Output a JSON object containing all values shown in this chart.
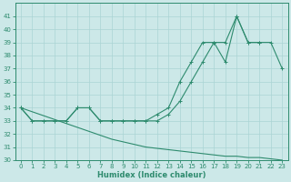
{
  "x": [
    0,
    1,
    2,
    3,
    4,
    5,
    6,
    7,
    8,
    9,
    10,
    11,
    12,
    13,
    14,
    15,
    16,
    17,
    18,
    19,
    20,
    21,
    22,
    23
  ],
  "line_zigzag": [
    34,
    33,
    33,
    33,
    33,
    34,
    34,
    33,
    33,
    33,
    33,
    33,
    33.5,
    34,
    36,
    37.5,
    39,
    39,
    37.5,
    41,
    39,
    39,
    null,
    null
  ],
  "line_smooth": [
    34,
    33,
    33,
    33,
    33,
    34,
    34,
    33,
    33,
    33,
    33,
    33,
    33,
    33.5,
    34.5,
    36,
    37.5,
    39,
    39,
    41,
    39,
    39,
    39,
    37
  ],
  "line_decline": [
    34,
    33.7,
    33.4,
    33.1,
    32.8,
    32.5,
    32.2,
    31.9,
    31.6,
    31.4,
    31.2,
    31.0,
    30.9,
    30.8,
    30.7,
    30.6,
    30.5,
    30.4,
    30.3,
    30.3,
    30.2,
    30.2,
    30.1,
    30.0
  ],
  "line_color": "#2e8b6e",
  "bg_color": "#cce8e8",
  "grid_color": "#aad4d4",
  "xlabel": "Humidex (Indice chaleur)",
  "ylim": [
    30,
    42
  ],
  "xlim": [
    -0.5,
    23.5
  ],
  "yticks": [
    30,
    31,
    32,
    33,
    34,
    35,
    36,
    37,
    38,
    39,
    40,
    41
  ],
  "xticks": [
    0,
    1,
    2,
    3,
    4,
    5,
    6,
    7,
    8,
    9,
    10,
    11,
    12,
    13,
    14,
    15,
    16,
    17,
    18,
    19,
    20,
    21,
    22,
    23
  ],
  "tick_fontsize": 5.0,
  "xlabel_fontsize": 6.0
}
